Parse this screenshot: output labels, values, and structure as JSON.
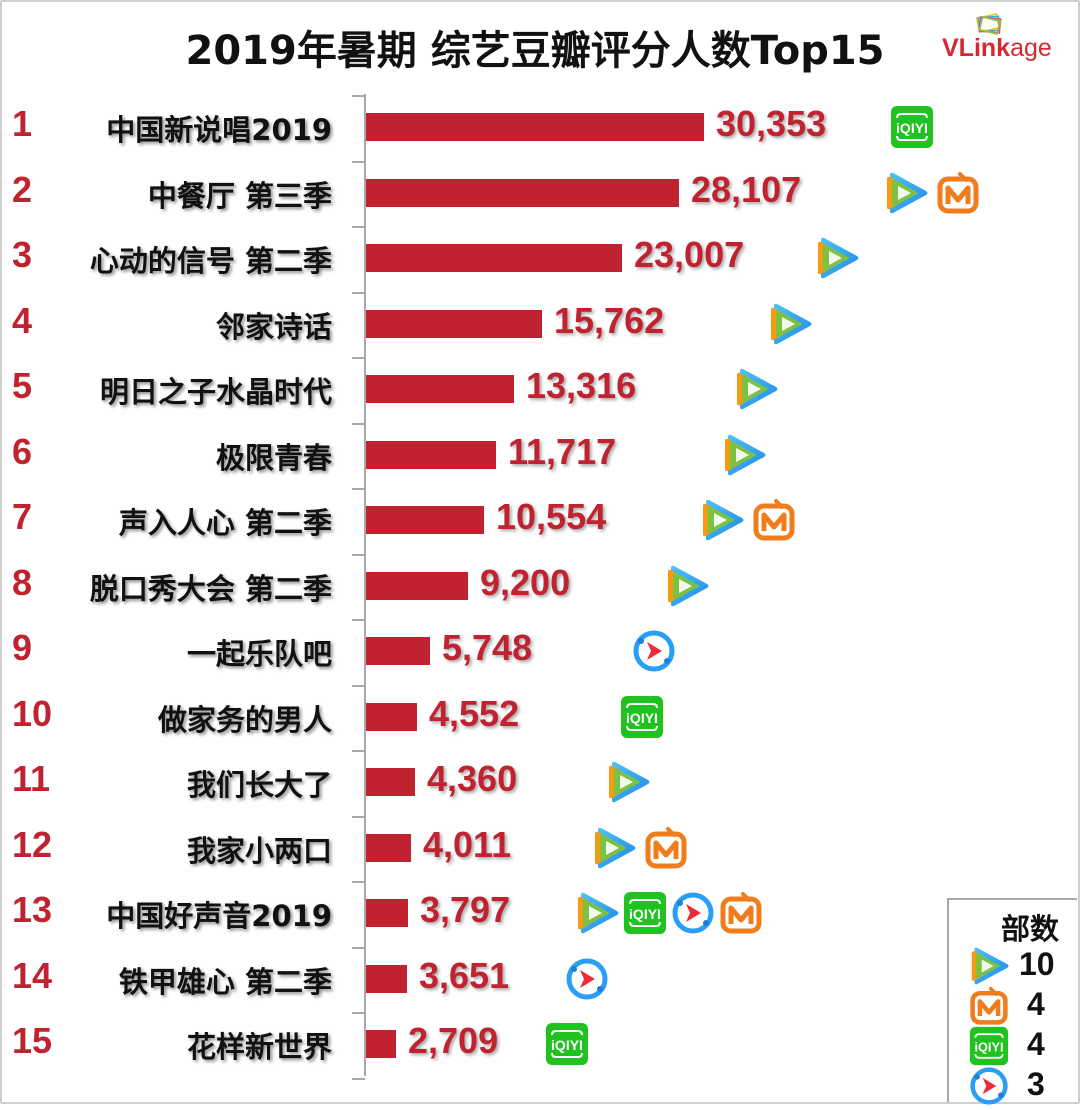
{
  "title": "2019年暑期 综艺豆瓣评分人数Top15",
  "logo": {
    "text_bold": "VLink",
    "text_light": "age"
  },
  "colors": {
    "bar": "#c0232f",
    "rank": "#c0232f",
    "value": "#c0232f",
    "tencent": "#2bb3e8",
    "mango": "#f07c1c",
    "iqiyi": "#1fc21f",
    "youku": "#2a9df4"
  },
  "chart_data": {
    "type": "bar",
    "orientation": "horizontal",
    "title": "2019年暑期 综艺豆瓣评分人数Top15",
    "xlabel": "",
    "ylabel": "",
    "categories": [
      "中国新说唱2019",
      "中餐厅 第三季",
      "心动的信号 第二季",
      "邻家诗话",
      "明日之子水晶时代",
      "极限青春",
      "声入人心 第二季",
      "脱口秀大会 第二季",
      "一起乐队吧",
      "做家务的男人",
      "我们长大了",
      "我家小两口",
      "中国好声音2019",
      "铁甲雄心 第二季",
      "花样新世界"
    ],
    "values": [
      30353,
      28107,
      23007,
      15762,
      13316,
      11717,
      10554,
      9200,
      5748,
      4552,
      4360,
      4011,
      3797,
      3651,
      2709
    ],
    "grid": false,
    "legend_position": "bottom-right"
  },
  "rows": [
    {
      "rank": "1",
      "name": "中国新说唱2019",
      "value": "30,353",
      "num": 30353,
      "platforms": [
        "iqiyi"
      ]
    },
    {
      "rank": "2",
      "name": "中餐厅 第三季",
      "value": "28,107",
      "num": 28107,
      "platforms": [
        "tencent",
        "mango"
      ]
    },
    {
      "rank": "3",
      "name": "心动的信号 第二季",
      "value": "23,007",
      "num": 23007,
      "platforms": [
        "tencent"
      ]
    },
    {
      "rank": "4",
      "name": "邻家诗话",
      "value": "15,762",
      "num": 15762,
      "platforms": [
        "tencent"
      ]
    },
    {
      "rank": "5",
      "name": "明日之子水晶时代",
      "value": "13,316",
      "num": 13316,
      "platforms": [
        "tencent"
      ]
    },
    {
      "rank": "6",
      "name": "极限青春",
      "value": "11,717",
      "num": 11717,
      "platforms": [
        "tencent"
      ]
    },
    {
      "rank": "7",
      "name": "声入人心 第二季",
      "value": "10,554",
      "num": 10554,
      "platforms": [
        "tencent",
        "mango"
      ]
    },
    {
      "rank": "8",
      "name": "脱口秀大会 第二季",
      "value": "9,200",
      "num": 9200,
      "platforms": [
        "tencent"
      ]
    },
    {
      "rank": "9",
      "name": "一起乐队吧",
      "value": "5,748",
      "num": 5748,
      "platforms": [
        "youku"
      ]
    },
    {
      "rank": "10",
      "name": "做家务的男人",
      "value": "4,552",
      "num": 4552,
      "platforms": [
        "iqiyi"
      ]
    },
    {
      "rank": "11",
      "name": "我们长大了",
      "value": "4,360",
      "num": 4360,
      "platforms": [
        "tencent"
      ]
    },
    {
      "rank": "12",
      "name": "我家小两口",
      "value": "4,011",
      "num": 4011,
      "platforms": [
        "tencent",
        "mango"
      ]
    },
    {
      "rank": "13",
      "name": "中国好声音2019",
      "value": "3,797",
      "num": 3797,
      "platforms": [
        "tencent",
        "iqiyi",
        "youku",
        "mango"
      ]
    },
    {
      "rank": "14",
      "name": "铁甲雄心 第二季",
      "value": "3,651",
      "num": 3651,
      "platforms": [
        "youku"
      ]
    },
    {
      "rank": "15",
      "name": "花样新世界",
      "value": "2,709",
      "num": 2709,
      "platforms": [
        "iqiyi"
      ]
    }
  ],
  "legend": {
    "title": "部数",
    "items": [
      {
        "platform": "tencent",
        "icon": "tencent-video-icon",
        "count": "10"
      },
      {
        "platform": "mango",
        "icon": "mango-tv-icon",
        "count": "4"
      },
      {
        "platform": "iqiyi",
        "icon": "iqiyi-icon",
        "count": "4"
      },
      {
        "platform": "youku",
        "icon": "youku-icon",
        "count": "3"
      }
    ]
  }
}
